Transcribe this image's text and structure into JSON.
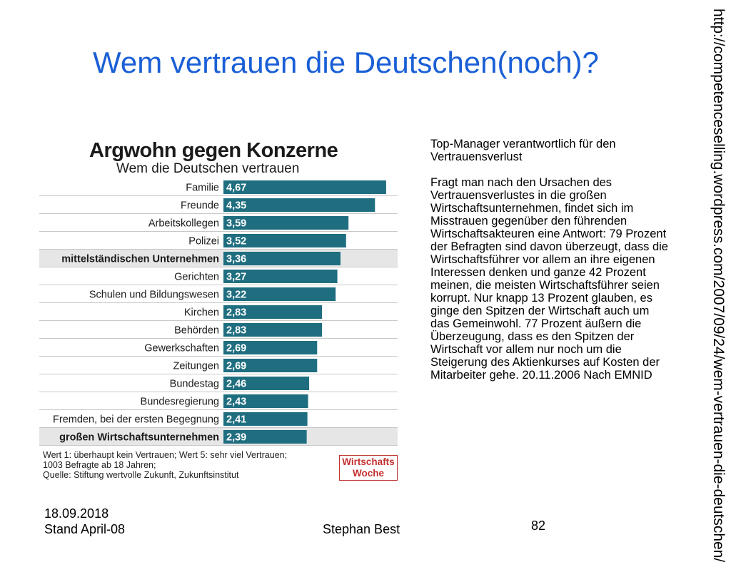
{
  "slide": {
    "title": "Wem vertrauen die Deutschen(noch)?",
    "vertical_url": "http://competenceselling.wordpress.com/2007/09/24/wem-vertrauen-die-deutschen/",
    "footer": {
      "date": "18.09.2018",
      "stand": "Stand April-08",
      "author": "Stephan Best",
      "page": "82"
    }
  },
  "text": {
    "heading": "Top-Manager verantwortlich für den Vertrauensverlust",
    "body": "Fragt man nach den Ursachen des Vertrauensverlustes in die großen Wirtschaftsunternehmen, findet sich im Misstrauen gegenüber den führenden Wirtschaftsakteuren eine Antwort: 79 Prozent der Befragten sind davon überzeugt, dass die Wirtschaftsführer vor allem an ihre eigenen Interessen denken und ganze 42 Prozent meinen, die meisten Wirtschaftsführer seien korrupt. Nur knapp 13 Prozent glauben, es ginge den Spitzen der Wirtschaft auch um das Gemeinwohl. 77 Prozent äußern die Überzeugung, dass es den Spitzen der Wirtschaft vor allem nur noch um die Steigerung des Aktienkurses auf Kosten der Mitarbeiter gehe. 20.11.2006 Nach EMNID"
  },
  "chart_data": {
    "type": "bar",
    "orientation": "horizontal",
    "title": "Argwohn gegen Konzerne",
    "subtitle": "Wem die Deutschen vertrauen",
    "categories": [
      "Familie",
      "Freunde",
      "Arbeitskollegen",
      "Polizei",
      "mittelständischen Unternehmen",
      "Gerichten",
      "Schulen und Bildungswesen",
      "Kirchen",
      "Behörden",
      "Gewerkschaften",
      "Zeitungen",
      "Bundestag",
      "Bundesregierung",
      "Fremden, bei der ersten Begegnung",
      "großen Wirtschaftsunternehmen"
    ],
    "values": [
      4.67,
      4.35,
      3.59,
      3.52,
      3.36,
      3.27,
      3.22,
      2.83,
      2.83,
      2.69,
      2.69,
      2.46,
      2.43,
      2.41,
      2.39
    ],
    "value_labels": [
      "4,67",
      "4,35",
      "3,59",
      "3,52",
      "3,36",
      "3,27",
      "3,22",
      "2,83",
      "2,83",
      "2,69",
      "2,69",
      "2,46",
      "2,43",
      "2,41",
      "2,39"
    ],
    "highlighted": [
      false,
      false,
      false,
      false,
      true,
      false,
      false,
      false,
      false,
      false,
      false,
      false,
      false,
      false,
      true
    ],
    "xlim": [
      0,
      5
    ],
    "bar_color": "#1f6e80",
    "row_highlight_color": "#e6e6e6",
    "note_lines": [
      "Wert 1: überhaupt kein Vertrauen; Wert 5: sehr viel Vertrauen;",
      "1003 Befragte ab 18 Jahren;",
      "Quelle: Stiftung wertvolle Zukunft, Zukunftsinstitut"
    ],
    "logo_lines": [
      "Wirtschafts",
      "Woche"
    ]
  }
}
